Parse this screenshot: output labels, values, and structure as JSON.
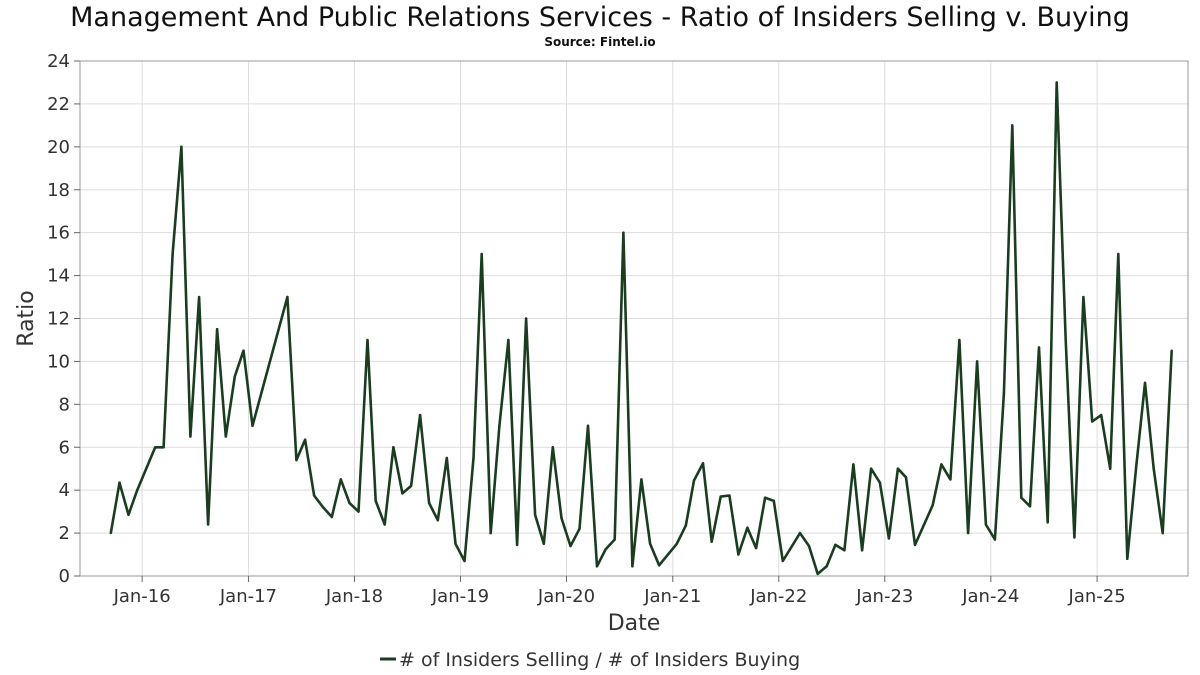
{
  "chart_data": {
    "type": "line",
    "title": "Management And Public Relations Services - Ratio of Insiders Selling v. Buying",
    "subtitle": "Source: Fintel.io",
    "xlabel": "Date",
    "ylabel": "Ratio",
    "ylim": [
      0,
      24
    ],
    "yticks": [
      0,
      2,
      4,
      6,
      8,
      10,
      12,
      14,
      16,
      18,
      20,
      22,
      24
    ],
    "xticks": [
      {
        "date": "2016-01-01",
        "label": "Jan-16"
      },
      {
        "date": "2017-01-01",
        "label": "Jan-17"
      },
      {
        "date": "2018-01-01",
        "label": "Jan-18"
      },
      {
        "date": "2019-01-01",
        "label": "Jan-19"
      },
      {
        "date": "2020-01-01",
        "label": "Jan-20"
      },
      {
        "date": "2021-01-01",
        "label": "Jan-21"
      },
      {
        "date": "2022-01-01",
        "label": "Jan-22"
      },
      {
        "date": "2023-01-01",
        "label": "Jan-23"
      },
      {
        "date": "2024-01-01",
        "label": "Jan-24"
      },
      {
        "date": "2025-01-01",
        "label": "Jan-25"
      }
    ],
    "grid": true,
    "legend_position": "bottom-center",
    "series": [
      {
        "name": "# of Insiders Selling / # of Insiders Buying",
        "color": "#1a3d20",
        "points": [
          [
            "2015-09-15",
            2.0
          ],
          [
            "2015-10-15",
            4.35
          ],
          [
            "2015-11-15",
            2.85
          ],
          [
            "2015-12-15",
            4.0
          ],
          [
            "2016-02-15",
            6.0
          ],
          [
            "2016-03-15",
            6.0
          ],
          [
            "2016-04-15",
            15.0
          ],
          [
            "2016-05-15",
            20.0
          ],
          [
            "2016-06-15",
            6.5
          ],
          [
            "2016-07-15",
            13.0
          ],
          [
            "2016-08-15",
            2.4
          ],
          [
            "2016-09-15",
            11.5
          ],
          [
            "2016-10-15",
            6.5
          ],
          [
            "2016-11-15",
            9.3
          ],
          [
            "2016-12-15",
            10.5
          ],
          [
            "2017-01-15",
            7.0
          ],
          [
            "2017-05-15",
            13.0
          ],
          [
            "2017-06-15",
            5.4
          ],
          [
            "2017-07-15",
            6.35
          ],
          [
            "2017-08-15",
            3.75
          ],
          [
            "2017-09-15",
            3.2
          ],
          [
            "2017-10-15",
            2.75
          ],
          [
            "2017-11-15",
            4.5
          ],
          [
            "2017-12-15",
            3.4
          ],
          [
            "2018-01-15",
            3.0
          ],
          [
            "2018-02-15",
            11.0
          ],
          [
            "2018-03-15",
            3.5
          ],
          [
            "2018-04-15",
            2.4
          ],
          [
            "2018-05-15",
            6.0
          ],
          [
            "2018-06-15",
            3.85
          ],
          [
            "2018-07-15",
            4.2
          ],
          [
            "2018-08-15",
            7.5
          ],
          [
            "2018-09-15",
            3.4
          ],
          [
            "2018-10-15",
            2.6
          ],
          [
            "2018-11-15",
            5.5
          ],
          [
            "2018-12-15",
            1.5
          ],
          [
            "2019-01-15",
            0.7
          ],
          [
            "2019-02-15",
            5.5
          ],
          [
            "2019-03-15",
            15.0
          ],
          [
            "2019-04-15",
            2.0
          ],
          [
            "2019-05-15",
            7.0
          ],
          [
            "2019-06-15",
            11.0
          ],
          [
            "2019-07-15",
            1.45
          ],
          [
            "2019-08-15",
            12.0
          ],
          [
            "2019-09-15",
            2.85
          ],
          [
            "2019-10-15",
            1.5
          ],
          [
            "2019-11-15",
            6.0
          ],
          [
            "2019-12-15",
            2.7
          ],
          [
            "2020-01-15",
            1.4
          ],
          [
            "2020-02-15",
            2.2
          ],
          [
            "2020-03-15",
            7.0
          ],
          [
            "2020-04-15",
            0.45
          ],
          [
            "2020-05-15",
            1.25
          ],
          [
            "2020-06-15",
            1.7
          ],
          [
            "2020-07-15",
            16.0
          ],
          [
            "2020-08-15",
            0.45
          ],
          [
            "2020-09-15",
            4.5
          ],
          [
            "2020-10-15",
            1.5
          ],
          [
            "2020-11-15",
            0.5
          ],
          [
            "2021-01-15",
            1.5
          ],
          [
            "2021-02-15",
            2.35
          ],
          [
            "2021-03-15",
            4.45
          ],
          [
            "2021-04-15",
            5.25
          ],
          [
            "2021-05-15",
            1.6
          ],
          [
            "2021-06-15",
            3.7
          ],
          [
            "2021-07-15",
            3.75
          ],
          [
            "2021-08-15",
            1.0
          ],
          [
            "2021-09-15",
            2.25
          ],
          [
            "2021-10-15",
            1.3
          ],
          [
            "2021-11-15",
            3.65
          ],
          [
            "2021-12-15",
            3.5
          ],
          [
            "2022-01-15",
            0.7
          ],
          [
            "2022-03-15",
            2.0
          ],
          [
            "2022-04-15",
            1.4
          ],
          [
            "2022-05-15",
            0.1
          ],
          [
            "2022-06-15",
            0.45
          ],
          [
            "2022-07-15",
            1.45
          ],
          [
            "2022-08-15",
            1.2
          ],
          [
            "2022-09-15",
            5.2
          ],
          [
            "2022-10-15",
            1.2
          ],
          [
            "2022-11-15",
            5.0
          ],
          [
            "2022-12-15",
            4.35
          ],
          [
            "2023-01-15",
            1.75
          ],
          [
            "2023-02-15",
            5.0
          ],
          [
            "2023-03-15",
            4.6
          ],
          [
            "2023-04-15",
            1.45
          ],
          [
            "2023-06-15",
            3.3
          ],
          [
            "2023-07-15",
            5.2
          ],
          [
            "2023-08-15",
            4.5
          ],
          [
            "2023-09-15",
            11.0
          ],
          [
            "2023-10-15",
            2.0
          ],
          [
            "2023-11-15",
            10.0
          ],
          [
            "2023-12-15",
            2.4
          ],
          [
            "2024-01-15",
            1.7
          ],
          [
            "2024-02-15",
            8.5
          ],
          [
            "2024-03-15",
            21.0
          ],
          [
            "2024-04-15",
            3.65
          ],
          [
            "2024-05-15",
            3.25
          ],
          [
            "2024-06-15",
            10.65
          ],
          [
            "2024-07-15",
            2.5
          ],
          [
            "2024-08-15",
            23.0
          ],
          [
            "2024-09-15",
            11.0
          ],
          [
            "2024-10-15",
            1.8
          ],
          [
            "2024-11-15",
            13.0
          ],
          [
            "2024-12-15",
            7.2
          ],
          [
            "2025-01-15",
            7.5
          ],
          [
            "2025-02-15",
            5.0
          ],
          [
            "2025-03-15",
            15.0
          ],
          [
            "2025-04-15",
            0.8
          ],
          [
            "2025-05-15",
            5.0
          ],
          [
            "2025-06-15",
            9.0
          ],
          [
            "2025-07-15",
            5.0
          ],
          [
            "2025-08-15",
            2.0
          ],
          [
            "2025-09-15",
            10.5
          ]
        ]
      }
    ]
  }
}
